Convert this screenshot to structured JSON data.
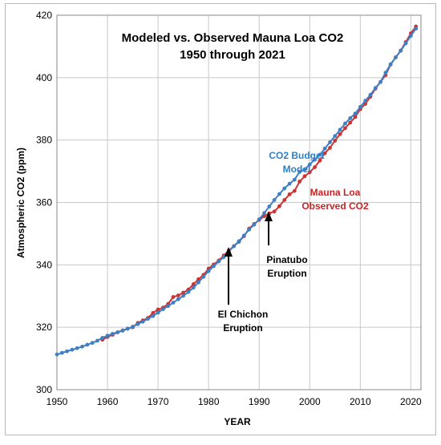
{
  "chart_data": {
    "type": "line",
    "title_lines": [
      "Modeled vs. Observed Mauna Loa CO2",
      "1950 through 2021"
    ],
    "xlabel": "YEAR",
    "ylabel": "Atmospheric CO2 (ppm)",
    "xlim": [
      1950,
      2022
    ],
    "ylim": [
      300,
      420
    ],
    "xticks": [
      1950,
      1960,
      1970,
      1980,
      1990,
      2000,
      2010,
      2020
    ],
    "yticks": [
      300,
      320,
      340,
      360,
      380,
      400,
      420
    ],
    "grid": true,
    "series": [
      {
        "name": "Mauna Loa Observed CO2",
        "color": "#cc3333",
        "x": [
          1959,
          1960,
          1961,
          1962,
          1963,
          1964,
          1965,
          1966,
          1967,
          1968,
          1969,
          1970,
          1971,
          1972,
          1973,
          1974,
          1975,
          1976,
          1977,
          1978,
          1979,
          1980,
          1981,
          1982,
          1983,
          1984,
          1985,
          1986,
          1987,
          1988,
          1989,
          1990,
          1991,
          1992,
          1993,
          1994,
          1995,
          1996,
          1997,
          1998,
          1999,
          2000,
          2001,
          2002,
          2003,
          2004,
          2005,
          2006,
          2007,
          2008,
          2009,
          2010,
          2011,
          2012,
          2013,
          2014,
          2015,
          2016,
          2017,
          2018,
          2019,
          2020,
          2021
        ],
        "y": [
          316.0,
          316.9,
          317.6,
          318.4,
          319.0,
          319.6,
          320.0,
          321.4,
          322.2,
          323.0,
          324.6,
          325.7,
          326.3,
          327.5,
          329.7,
          330.2,
          331.1,
          332.1,
          333.8,
          335.4,
          336.8,
          338.8,
          340.1,
          341.4,
          343.0,
          344.6,
          346.0,
          347.4,
          349.2,
          351.6,
          353.1,
          354.4,
          355.6,
          356.5,
          357.1,
          358.8,
          360.8,
          362.6,
          363.7,
          366.7,
          368.4,
          369.7,
          371.3,
          373.4,
          375.8,
          377.5,
          379.8,
          381.9,
          383.8,
          385.6,
          387.4,
          389.9,
          391.6,
          393.9,
          396.5,
          398.6,
          400.8,
          404.2,
          406.5,
          408.7,
          411.4,
          414.2,
          416.4
        ]
      },
      {
        "name": "CO2 Budget Model",
        "color": "#3f7fc4",
        "x": [
          1950,
          1951,
          1952,
          1953,
          1954,
          1955,
          1956,
          1957,
          1958,
          1959,
          1960,
          1961,
          1962,
          1963,
          1964,
          1965,
          1966,
          1967,
          1968,
          1969,
          1970,
          1971,
          1972,
          1973,
          1974,
          1975,
          1976,
          1977,
          1978,
          1979,
          1980,
          1981,
          1982,
          1983,
          1984,
          1985,
          1986,
          1987,
          1988,
          1989,
          1990,
          1991,
          1992,
          1993,
          1994,
          1995,
          1996,
          1997,
          1998,
          1999,
          2000,
          2001,
          2002,
          2003,
          2004,
          2005,
          2006,
          2007,
          2008,
          2009,
          2010,
          2011,
          2012,
          2013,
          2014,
          2015,
          2016,
          2017,
          2018,
          2019,
          2020,
          2021
        ],
        "y": [
          311.3,
          311.8,
          312.3,
          312.8,
          313.3,
          313.8,
          314.4,
          315.0,
          315.7,
          316.6,
          317.3,
          317.9,
          318.4,
          318.9,
          319.5,
          320.2,
          321.0,
          321.8,
          322.7,
          323.6,
          324.7,
          325.8,
          326.8,
          327.9,
          329.0,
          330.1,
          331.3,
          332.7,
          334.4,
          336.2,
          338.0,
          339.6,
          341.1,
          342.5,
          344.3,
          346.0,
          347.6,
          349.4,
          351.3,
          352.9,
          354.6,
          356.6,
          358.7,
          360.8,
          362.7,
          364.5,
          366.0,
          367.3,
          369.8,
          370.6,
          372.2,
          373.7,
          375.3,
          377.3,
          379.3,
          381.3,
          383.3,
          385.3,
          387.0,
          388.5,
          390.6,
          392.6,
          394.5,
          396.7,
          398.6,
          401.6,
          404.3,
          406.5,
          408.6,
          411.0,
          413.4,
          415.7
        ]
      }
    ],
    "annotations": {
      "model_label": [
        "CO2 Budget",
        "Model"
      ],
      "observed_label": [
        "Mauna Loa",
        "Observed CO2"
      ],
      "el_chichon": {
        "lines": [
          "El Chichon",
          "Eruption"
        ],
        "year": 1983.5,
        "value": 344.5
      },
      "pinatubo": {
        "lines": [
          "Pinatubo",
          "Eruption"
        ],
        "year": 1991.5,
        "value": 357.0
      }
    }
  }
}
